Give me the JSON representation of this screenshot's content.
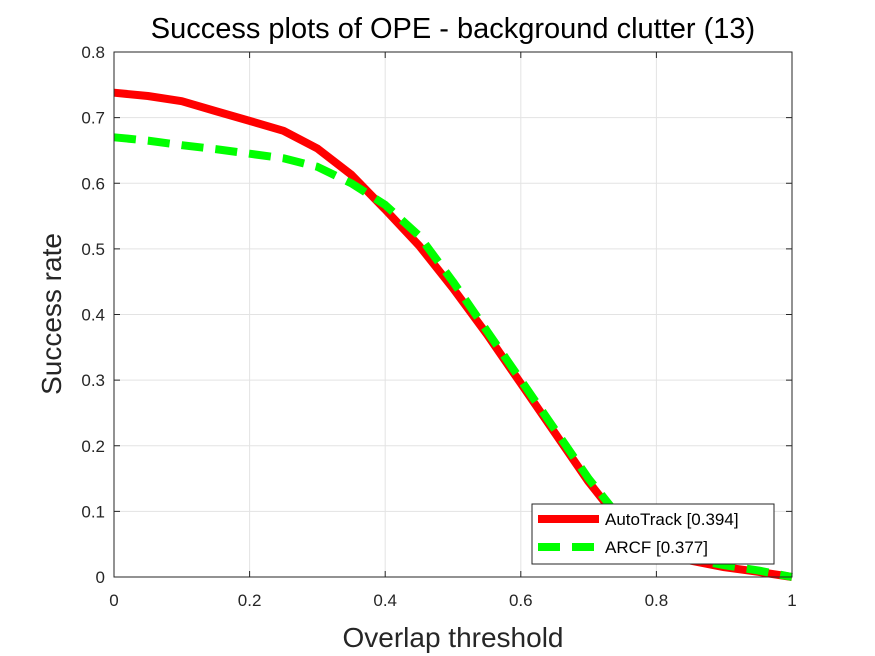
{
  "chart_data": {
    "type": "line",
    "title": "Success plots of OPE - background clutter (13)",
    "xlabel": "Overlap threshold",
    "ylabel": "Success rate",
    "xlim": [
      0,
      1
    ],
    "ylim": [
      0,
      0.8
    ],
    "xticks": [
      0,
      0.2,
      0.4,
      0.6,
      0.8,
      1
    ],
    "xtick_labels": [
      "0",
      "0.2",
      "0.4",
      "0.6",
      "0.8",
      "1"
    ],
    "yticks": [
      0,
      0.1,
      0.2,
      0.3,
      0.4,
      0.5,
      0.6,
      0.7,
      0.8
    ],
    "ytick_labels": [
      "0",
      "0.1",
      "0.2",
      "0.3",
      "0.4",
      "0.5",
      "0.6",
      "0.7",
      "0.8"
    ],
    "grid": true,
    "legend_position": "bottom-right",
    "x": [
      0,
      0.05,
      0.1,
      0.15,
      0.2,
      0.25,
      0.3,
      0.35,
      0.4,
      0.45,
      0.5,
      0.55,
      0.6,
      0.65,
      0.7,
      0.75,
      0.8,
      0.85,
      0.9,
      0.95,
      1
    ],
    "series": [
      {
        "name": "AutoTrack [0.394]",
        "color": "#ff0000",
        "style": "solid",
        "values": [
          0.738,
          0.733,
          0.725,
          0.71,
          0.695,
          0.68,
          0.653,
          0.613,
          0.56,
          0.505,
          0.44,
          0.37,
          0.295,
          0.22,
          0.145,
          0.08,
          0.04,
          0.025,
          0.015,
          0.008,
          0.0
        ]
      },
      {
        "name": "ARCF [0.377]",
        "color": "#00ff00",
        "style": "dashed",
        "values": [
          0.67,
          0.665,
          0.658,
          0.652,
          0.645,
          0.638,
          0.625,
          0.6,
          0.567,
          0.52,
          0.45,
          0.375,
          0.3,
          0.225,
          0.15,
          0.085,
          0.045,
          0.028,
          0.018,
          0.01,
          0.0
        ]
      }
    ]
  }
}
